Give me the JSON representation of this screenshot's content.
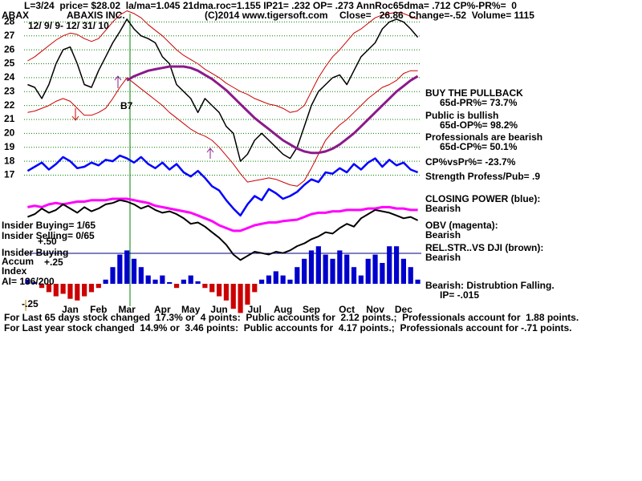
{
  "chart_data": {
    "type": "stock",
    "header": [
      "L=3/24  price= $28.02  la/ma=1.045 21dma.roc=1.155 IP21= .232 OP= .273 AnnRoc65dma= .712 CP%-PR%=  0",
      "ABAX",
      "ABAXIS INC.",
      "(C)2014 www.tigersoft.com",
      "Close=   26.86  Change=-.52  Volume= 1115",
      "12/ 9/ 9- 12/ 31/ 10"
    ],
    "notes": [
      "BUY THE PULLBACK",
      "65d-PR%= 73.7%",
      "Public is bullish",
      "65d-OP%= 98.2%",
      "Professionals are bearish",
      "65d-CP%= 50.1%",
      "CP%vsPr%= -23.7%",
      "Strength Profess/Pub= .9",
      "CLOSING POWER (blue):",
      "Bearish",
      "OBV (magenta):",
      "Bearish",
      "REL.STR..VS DJI (brown):",
      "Bearish",
      "Bearish: Distrubtion Falling.",
      "IP= -.015",
      "Insider Buying= 1/65",
      "Insider Selling= 0/65",
      "Insider Buying",
      "Accum",
      "Index",
      "AI= 136/200",
      "B7"
    ],
    "footer": [
      "For Last 65 days stock changed  17.3% or  4 points:  Public accounts for  2.12 points.;  Professionals account for  1.88 points.",
      "For Last year stock changed  14.9% or  3.46 points:  Public accounts for  4.17 points.;  Professionals account for -.71 points."
    ],
    "categories": [
      null,
      null,
      null,
      null,
      "Jan",
      null,
      null,
      null,
      "Feb",
      null,
      null,
      null,
      "Mar",
      null,
      null,
      null,
      null,
      "Apr",
      null,
      null,
      null,
      "May",
      null,
      null,
      null,
      "Jun",
      null,
      null,
      null,
      null,
      "Jul",
      null,
      null,
      null,
      "Aug",
      null,
      null,
      null,
      "Sep",
      null,
      null,
      null,
      null,
      "Oct",
      null,
      null,
      null,
      "Nov",
      null,
      null,
      null,
      "Dec",
      null,
      null,
      null,
      null
    ],
    "ylim": [
      7.7,
      29
    ],
    "yticks": [
      28,
      27,
      26,
      25,
      24,
      23,
      22,
      21,
      20,
      19,
      18,
      17
    ],
    "grid": true,
    "series": [
      {
        "color": "#000000",
        "width": 1.5,
        "values": [
          23.5,
          23.3,
          22.5,
          23.5,
          25,
          26,
          26.2,
          25,
          23.5,
          23.3,
          24.5,
          25.5,
          26.5,
          27.3,
          28.2,
          27.5,
          27,
          26.8,
          26.5,
          25.5,
          25,
          23.5,
          23,
          22.5,
          21.5,
          22.5,
          22,
          21.5,
          20.5,
          20,
          18,
          18.5,
          19.5,
          20,
          19.5,
          19,
          18.5,
          18.2,
          19,
          20.5,
          22,
          23,
          23.5,
          24,
          24.2,
          23.5,
          24.5,
          25.5,
          26,
          26.5,
          27.5,
          28,
          28.2,
          28,
          27.5,
          26.9
        ]
      },
      {
        "color": "#cc0000",
        "width": 1,
        "values": [
          25.2,
          25.5,
          25.9,
          26.3,
          26.7,
          27,
          27.2,
          27.1,
          26.8,
          26.6,
          26.8,
          27.4,
          28,
          28.5,
          28.8,
          28.6,
          28.3,
          27.8,
          27.4,
          27,
          26.5,
          26,
          25.6,
          25.3,
          25,
          24.6,
          24.3,
          24,
          23.6,
          23.3,
          23,
          22.8,
          22.5,
          22.3,
          22.1,
          22,
          21.8,
          21.5,
          21.6,
          22,
          23,
          24,
          24.8,
          25.5,
          26,
          26.6,
          27.2,
          27.5,
          27.9,
          28.3,
          28.5,
          28.6,
          28.7,
          28.6,
          28.4,
          28.2
        ]
      },
      {
        "color": "#cc0000",
        "width": 1,
        "values": [
          21.5,
          21.6,
          21.8,
          22,
          22.3,
          22.5,
          22.3,
          21.8,
          21.3,
          21.3,
          21.5,
          21.8,
          22.5,
          23.3,
          24,
          23.6,
          23.2,
          22.8,
          22.4,
          22,
          21.5,
          21.1,
          20.7,
          20.3,
          20,
          19.8,
          19.5,
          19,
          18.4,
          17.8,
          17.1,
          16.5,
          16.6,
          16.7,
          16.8,
          16.7,
          16.5,
          16.3,
          16.2,
          16.6,
          17.5,
          18.5,
          19.5,
          20.1,
          20.6,
          21,
          21.5,
          22,
          22.5,
          22.9,
          23.3,
          23.5,
          23.8,
          24.3,
          24.5,
          24.5
        ]
      },
      {
        "color": "#8b1a8b",
        "width": 3,
        "values": [
          null,
          null,
          null,
          null,
          null,
          null,
          null,
          null,
          null,
          null,
          null,
          null,
          null,
          null,
          23.8,
          24.1,
          24.3,
          24.5,
          24.6,
          24.7,
          24.8,
          24.8,
          24.8,
          24.7,
          24.5,
          24.2,
          23.9,
          23.5,
          23.1,
          22.6,
          22.1,
          21.6,
          21.1,
          20.7,
          20.3,
          19.9,
          19.5,
          19.2,
          18.9,
          18.7,
          18.6,
          18.6,
          18.7,
          18.9,
          19.2,
          19.6,
          20,
          20.5,
          21,
          21.5,
          22,
          22.5,
          23,
          23.4,
          23.8,
          24.1
        ]
      },
      {
        "color": "#0000ff",
        "width": 2.5,
        "values": [
          17.3,
          17.6,
          17.9,
          17.4,
          17.8,
          18.3,
          18,
          17.5,
          17.6,
          17.9,
          17.7,
          18.1,
          18,
          18.4,
          18.2,
          17.9,
          18.3,
          17.8,
          17.5,
          17.9,
          17.4,
          17.8,
          17.2,
          16.9,
          17.3,
          16.8,
          16.2,
          15.9,
          15.2,
          14.6,
          14.1,
          14.9,
          15.5,
          15.2,
          16,
          15.7,
          15.3,
          15.5,
          15.8,
          16.3,
          16.7,
          16.5,
          17.2,
          17.1,
          17.5,
          17.2,
          17.8,
          17.4,
          17.9,
          18.2,
          17.6,
          18.1,
          17.7,
          17.9,
          17.4,
          17.2
        ]
      },
      {
        "color": "#ff00ff",
        "width": 3,
        "values": [
          14.7,
          14.8,
          14.7,
          14.9,
          15,
          14.9,
          15,
          15.1,
          15.1,
          15.2,
          15.2,
          15.2,
          15.3,
          15.3,
          15.3,
          15.2,
          15.1,
          15,
          14.8,
          14.7,
          14.6,
          14.5,
          14.4,
          14.3,
          14.1,
          13.9,
          13.7,
          13.4,
          13.2,
          13,
          13,
          13.2,
          13.4,
          13.5,
          13.6,
          13.6,
          13.7,
          13.75,
          13.8,
          14,
          14.2,
          14.3,
          14.3,
          14.4,
          14.4,
          14.5,
          14.5,
          14.5,
          14.6,
          14.6,
          14.7,
          14.7,
          14.6,
          14.6,
          14.5,
          14.5
        ]
      },
      {
        "color": "#000000",
        "width": 2,
        "values": [
          14,
          14.2,
          14.6,
          14.3,
          14.5,
          14.9,
          14.6,
          14.3,
          14.7,
          14.4,
          14.6,
          14.9,
          15,
          15.2,
          15.1,
          14.9,
          14.6,
          14.8,
          14.5,
          14.3,
          14.4,
          14.2,
          13.9,
          13.5,
          13.6,
          13.3,
          12.9,
          12.5,
          12,
          11.3,
          10.9,
          11.2,
          11.5,
          11.4,
          11.3,
          11.5,
          11.4,
          11.6,
          11.9,
          12.1,
          12.4,
          12.6,
          12.9,
          12.8,
          13.2,
          13.5,
          13.3,
          13.9,
          14.2,
          14.5,
          14.4,
          14.3,
          14.1,
          13.9,
          14,
          13.75
        ]
      }
    ],
    "accum": {
      "colors": {
        "positive": "#0000cc",
        "negative": "#cc0000"
      },
      "values": [
        0.05,
        0.02,
        -0.05,
        -0.1,
        -0.15,
        -0.12,
        -0.18,
        -0.2,
        -0.15,
        -0.1,
        -0.05,
        0.05,
        0.2,
        0.35,
        0.4,
        0.3,
        0.2,
        0.1,
        0.05,
        0.1,
        0.02,
        -0.05,
        0.05,
        0.1,
        0.03,
        -0.05,
        -0.1,
        -0.15,
        -0.2,
        -0.3,
        -0.35,
        -0.25,
        -0.1,
        0.05,
        0.1,
        0.15,
        0.1,
        0.05,
        0.2,
        0.3,
        0.4,
        0.45,
        0.35,
        0.3,
        0.4,
        0.35,
        0.2,
        0.1,
        0.3,
        0.35,
        0.25,
        0.45,
        0.45,
        0.3,
        0.2,
        0.05
      ]
    },
    "y2lim": [
      -0.25,
      0.5
    ],
    "y2ticks": [
      {
        "value": 0.5,
        "label": "+.50"
      },
      {
        "value": 0.25,
        "label": "+.25"
      },
      {
        "value": -0.25,
        "label": "-.25"
      }
    ]
  }
}
